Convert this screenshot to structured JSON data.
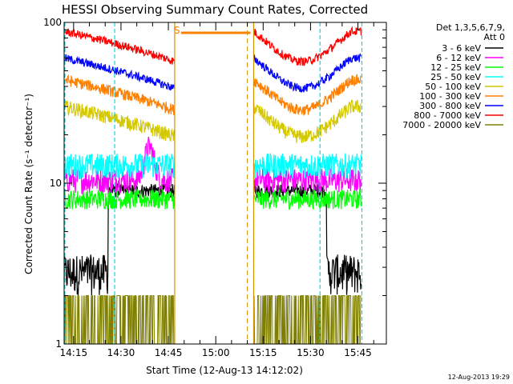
{
  "chart_data": {
    "type": "line",
    "title": "HESSI Observing Summary Count Rates, Corrected",
    "xlabel": "Start Time (12-Aug-13 14:12:02)",
    "ylabel": "Corrected Count Rate (s⁻¹ detector⁻¹)",
    "yscale": "log",
    "ylim": [
      1,
      100
    ],
    "xlim_minutes": [
      -3,
      99
    ],
    "x_ticks": [
      "14:15",
      "14:30",
      "14:45",
      "15:00",
      "15:15",
      "15:30",
      "15:45"
    ],
    "x_tick_minutes": [
      0,
      15,
      30,
      45,
      60,
      75,
      90
    ],
    "y_ticks": [
      "1",
      "10",
      "100"
    ],
    "legend_header": [
      "Det 1,3,5,6,7,9,",
      "Att 0"
    ],
    "timestamp": "12-Aug-2013 19:29",
    "flag_label": "S",
    "series": [
      {
        "name": "3 - 6 keV",
        "color": "#000000"
      },
      {
        "name": "6 - 12 keV",
        "color": "#ff00ff"
      },
      {
        "name": "12 - 25 keV",
        "color": "#00ff00"
      },
      {
        "name": "25 - 50 keV",
        "color": "#00ffff"
      },
      {
        "name": "50 - 100 keV",
        "color": "#d4c800"
      },
      {
        "name": "100 - 300 keV",
        "color": "#ff7f00"
      },
      {
        "name": "300 - 800 keV",
        "color": "#0000ff"
      },
      {
        "name": "800 - 7000 keV",
        "color": "#ff0000"
      },
      {
        "name": "7000 - 20000 keV",
        "color": "#808000"
      }
    ],
    "segments_minutes": [
      [
        -3,
        32
      ],
      [
        57,
        91
      ]
    ],
    "saa_minutes": [
      32,
      57
    ],
    "night_lines_minutes": [
      -3,
      91
    ],
    "day_lines_minutes": [
      13,
      78
    ],
    "orange_dashed_minutes": [
      55
    ]
  }
}
